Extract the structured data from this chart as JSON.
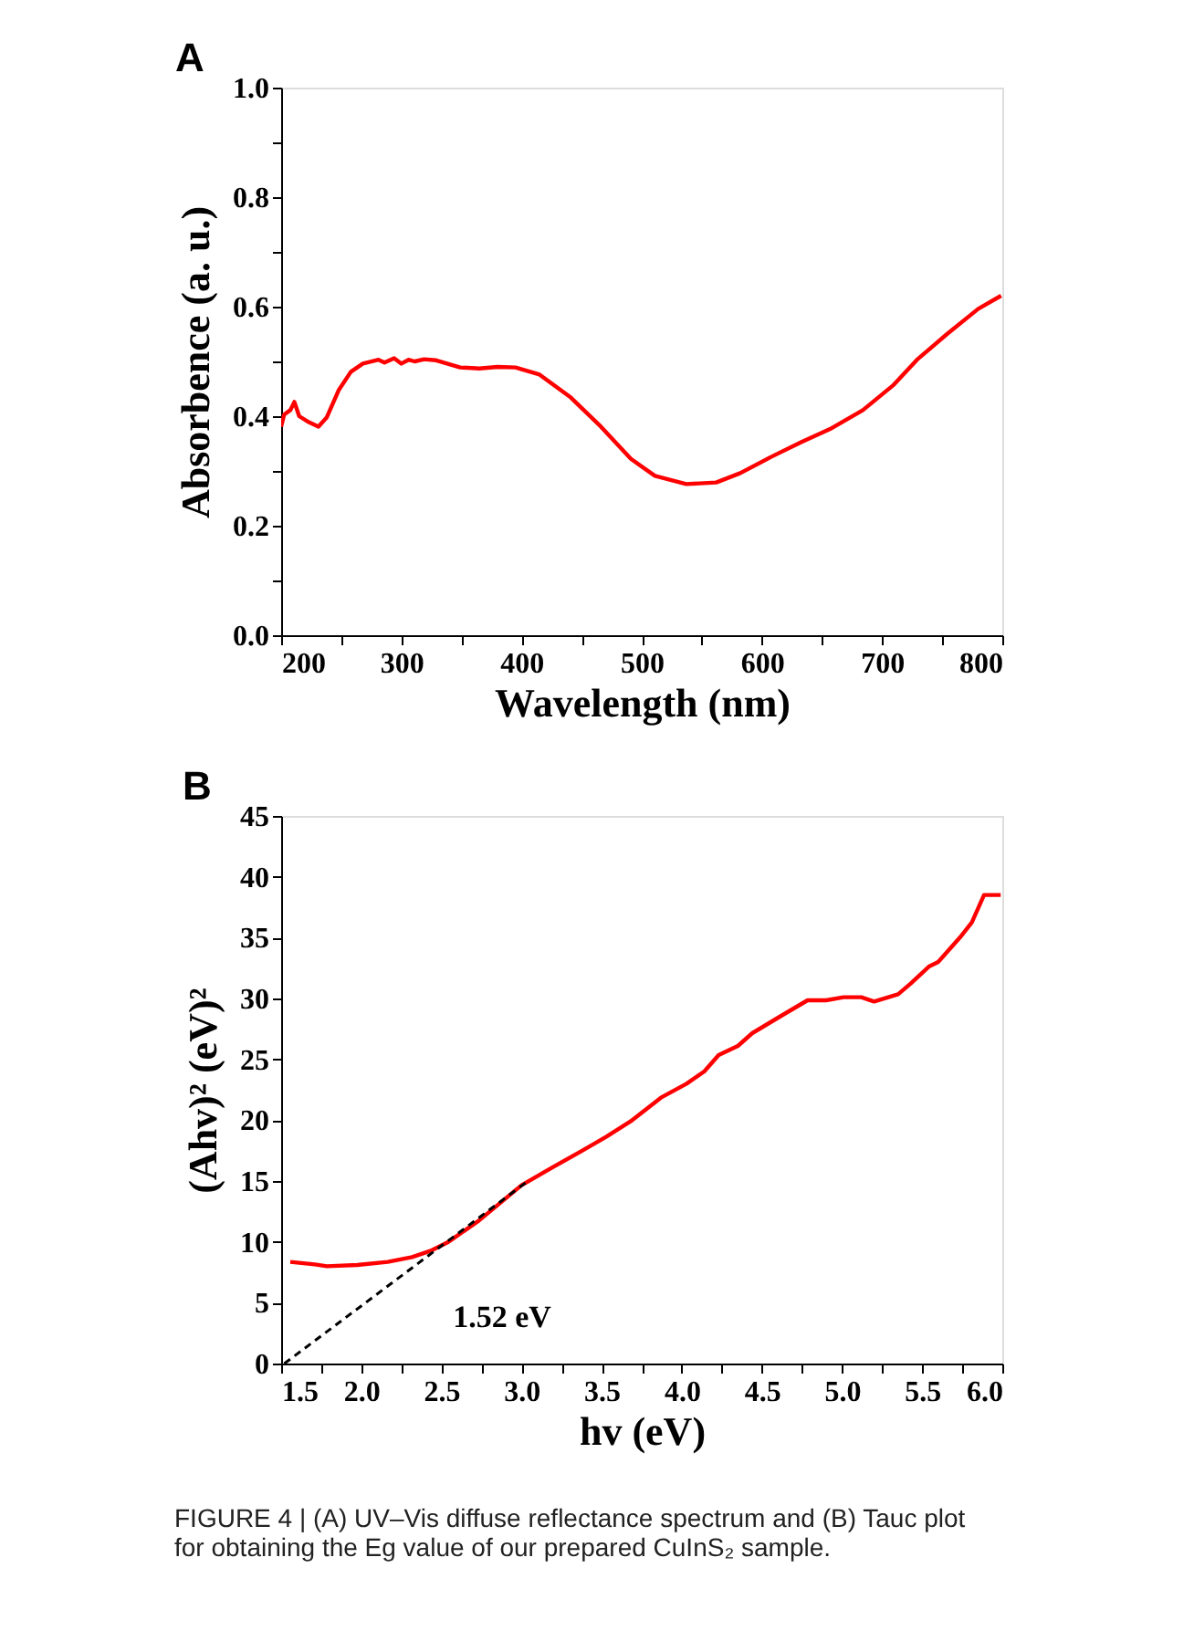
{
  "chart_data": [
    {
      "type": "line",
      "title": "A",
      "xlabel": "Wavelength (nm)",
      "ylabel": "Absorbence (a. u.)",
      "x": [
        200,
        202.5,
        207.6,
        211,
        215,
        223,
        231,
        238,
        248,
        258,
        268,
        281,
        286,
        294,
        300,
        306,
        311,
        319,
        329,
        349,
        365,
        380,
        395,
        415,
        441,
        466,
        491,
        511,
        537,
        562,
        582,
        608,
        633,
        658,
        684,
        709,
        729,
        754,
        780,
        799
      ],
      "series": [
        {
          "color": "#ff0000",
          "values": [
            0.381,
            0.403,
            0.411,
            0.426,
            0.4,
            0.389,
            0.381,
            0.398,
            0.448,
            0.481,
            0.496,
            0.503,
            0.498,
            0.506,
            0.496,
            0.503,
            0.5,
            0.504,
            0.502,
            0.489,
            0.487,
            0.49,
            0.489,
            0.476,
            0.434,
            0.381,
            0.322,
            0.291,
            0.276,
            0.279,
            0.296,
            0.326,
            0.353,
            0.378,
            0.411,
            0.456,
            0.503,
            0.55,
            0.596,
            0.62
          ]
        }
      ],
      "xlim": [
        200,
        800
      ],
      "xticks": [
        200,
        {
          "value": 250,
          "label": null
        },
        300,
        {
          "value": 350,
          "label": null
        },
        400,
        {
          "value": 450,
          "label": null
        },
        500,
        {
          "value": 550,
          "label": null
        },
        600,
        {
          "value": 650,
          "label": null
        },
        700,
        {
          "value": 750,
          "label": null
        },
        800
      ],
      "ylim": [
        0,
        1.0
      ],
      "yticks": [
        {
          "value": 0,
          "label": "0.0"
        },
        {
          "value": 0.1,
          "label": null
        },
        0.2,
        {
          "value": 0.3,
          "label": null
        },
        0.4,
        {
          "value": 0.5,
          "label": null
        },
        0.6,
        {
          "value": 0.7,
          "label": null
        },
        0.8,
        {
          "value": 0.9,
          "label": null
        },
        {
          "value": 1.0,
          "label": "1.0"
        }
      ],
      "grid": false,
      "line_style": "solid"
    },
    {
      "type": "line",
      "title": "B",
      "xlabel": "hv (eV)",
      "ylabel": "(Ahv)² (eV)²",
      "series": [
        {
          "color": "#ff0000",
          "x": [
            1.557,
            1.71,
            1.785,
            1.975,
            2.165,
            2.317,
            2.43,
            2.544,
            2.734,
            3.0,
            3.19,
            3.38,
            3.53,
            3.68,
            3.87,
            4.03,
            4.14,
            4.23,
            4.35,
            4.44,
            4.63,
            4.785,
            4.9,
            5.01,
            5.12,
            5.2,
            5.35,
            5.43,
            5.545,
            5.6,
            5.735,
            5.81,
            5.886,
            5.99
          ],
          "values": [
            8.35,
            8.15,
            8.0,
            8.1,
            8.35,
            8.75,
            9.25,
            10.0,
            11.75,
            14.65,
            16.1,
            17.5,
            18.65,
            19.9,
            21.85,
            23.0,
            24.0,
            25.35,
            26.1,
            27.15,
            28.65,
            29.85,
            29.85,
            30.1,
            30.1,
            29.75,
            30.35,
            31.25,
            32.65,
            33.0,
            35.0,
            36.25,
            38.5,
            38.5
          ]
        },
        {
          "color": "#000000",
          "line_style": "dashed",
          "x": [
            1.52,
            3.04
          ],
          "values": [
            0,
            15
          ]
        }
      ],
      "annotations": [
        "1.52 eV",
        "FIGURE 4 | (A) UV–Vis diffuse reflectance spectrum and (B) Tauc plot for obtaining the Eg value of our prepared CuInS₂ sample."
      ],
      "xlim": [
        1.5,
        6.0
      ],
      "xticks": [
        1.5,
        {
          "value": 1.75,
          "label": null
        },
        {
          "value": 2.0,
          "label": "2.0"
        },
        {
          "value": 2.25,
          "label": null
        },
        2.5,
        {
          "value": 2.75,
          "label": null
        },
        {
          "value": 3.0,
          "label": "3.0"
        },
        {
          "value": 3.25,
          "label": null
        },
        3.5,
        {
          "value": 3.75,
          "label": null
        },
        {
          "value": 4.0,
          "label": "4.0"
        },
        {
          "value": 4.25,
          "label": null
        },
        4.5,
        {
          "value": 4.75,
          "label": null
        },
        {
          "value": 5.0,
          "label": "5.0"
        },
        {
          "value": 5.25,
          "label": null
        },
        5.5,
        {
          "value": 5.75,
          "label": null
        },
        {
          "value": 6.0,
          "label": "6.0"
        }
      ],
      "ylim": [
        0,
        45
      ],
      "yticks": [
        0,
        5,
        10,
        15,
        20,
        25,
        30,
        35,
        40,
        45
      ],
      "grid": false,
      "line_style": "solid"
    }
  ]
}
